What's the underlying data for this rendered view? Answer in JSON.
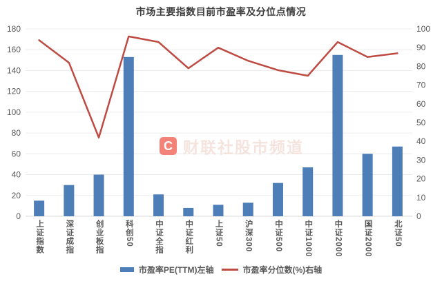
{
  "title": "市场主要指数目前市盈率及分位点情况",
  "watermark": {
    "logo_letter": "C",
    "text": "财联社股市频道",
    "logo_color": "#f1695c",
    "text_color": "#f5e4de"
  },
  "legend": [
    {
      "label": "市盈率PE(TTM)左轴",
      "type": "bar",
      "color": "#4d7eb8"
    },
    {
      "label": "市盈率分位数(%)右轴",
      "type": "line",
      "color": "#be4a42"
    }
  ],
  "chart_data": {
    "type": "bar",
    "subtype": "combo-bar-line-dual-axis",
    "title": "市场主要指数目前市盈率及分位点情况",
    "categories": [
      "上证指数",
      "深证成指",
      "创业板指",
      "科创50",
      "中证全指",
      "中证红利",
      "上证50",
      "沪深300",
      "中证500",
      "中证1000",
      "中证2000",
      "国证2000",
      "北证50"
    ],
    "series": [
      {
        "name": "市盈率PE(TTM)左轴",
        "type": "bar",
        "axis": "left",
        "color": "#4d7eb8",
        "values": [
          15,
          30,
          40,
          153,
          21,
          8,
          11,
          13,
          32,
          47,
          155,
          60,
          67
        ]
      },
      {
        "name": "市盈率分位数(%)右轴",
        "type": "line",
        "axis": "right",
        "color": "#be4a42",
        "values": [
          94,
          82,
          42,
          96,
          93,
          79,
          90,
          83,
          78,
          75,
          93,
          85,
          87
        ]
      }
    ],
    "left_axis": {
      "min": 0,
      "max": 180,
      "step": 20,
      "ticks": [
        "0",
        "20",
        "40",
        "60",
        "80",
        "100",
        "120",
        "140",
        "160",
        "180"
      ]
    },
    "right_axis": {
      "min": 0,
      "max": 100,
      "step": 10,
      "ticks": [
        "0",
        "10",
        "20",
        "30",
        "40",
        "50",
        "60",
        "70",
        "80",
        "90",
        "100"
      ]
    },
    "grid": true,
    "grid_color": "#ececec",
    "baseline_color": "#d9d9d9",
    "tick_color": "#595959",
    "legend_position": "bottom"
  }
}
